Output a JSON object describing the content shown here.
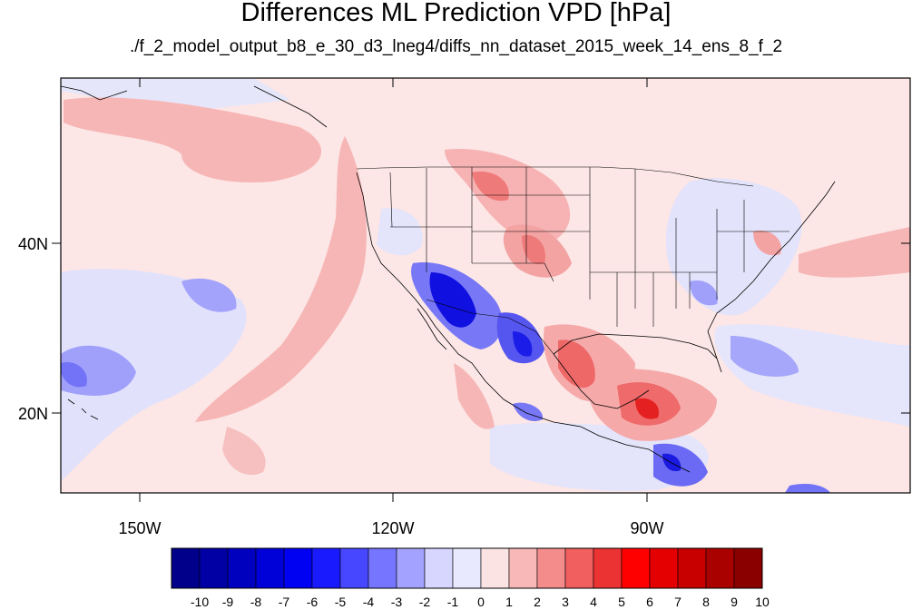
{
  "title": "Differences ML Prediction VPD [hPa]",
  "subtitle": "./f_2_model_output_b8_e_30_d3_lneg4/diffs_nn_dataset_2015_week_14_ens_8_f_2",
  "map": {
    "projection": "cylindrical equidistant",
    "lon_range": [
      -160,
      -60
    ],
    "lat_range": [
      10,
      58
    ],
    "lon_ticks": [
      {
        "value": -150,
        "label": "150W"
      },
      {
        "value": -120,
        "label": "120W"
      },
      {
        "value": -90,
        "label": "90W"
      }
    ],
    "lat_ticks": [
      {
        "value": 40,
        "label": "40N"
      },
      {
        "value": 20,
        "label": "20N"
      }
    ],
    "background_color": "#fce6e6"
  },
  "colorbar": {
    "labels": [
      "-10",
      "-9",
      "-8",
      "-7",
      "-6",
      "-5",
      "-4",
      "-3",
      "-2",
      "-1",
      "0",
      "1",
      "2",
      "3",
      "4",
      "5",
      "6",
      "7",
      "8",
      "9",
      "10"
    ],
    "colors": [
      "#00008a",
      "#0000a4",
      "#0000bf",
      "#0000d9",
      "#0000f2",
      "#1a1aff",
      "#4747ff",
      "#7575ff",
      "#a3a3ff",
      "#d6d6ff",
      "#e8e8ff",
      "#fbe3e3",
      "#f9b8b8",
      "#f58c8c",
      "#f15f5f",
      "#ec3333",
      "#ff0000",
      "#e40000",
      "#c80000",
      "#a90000",
      "#8a0000"
    ]
  }
}
